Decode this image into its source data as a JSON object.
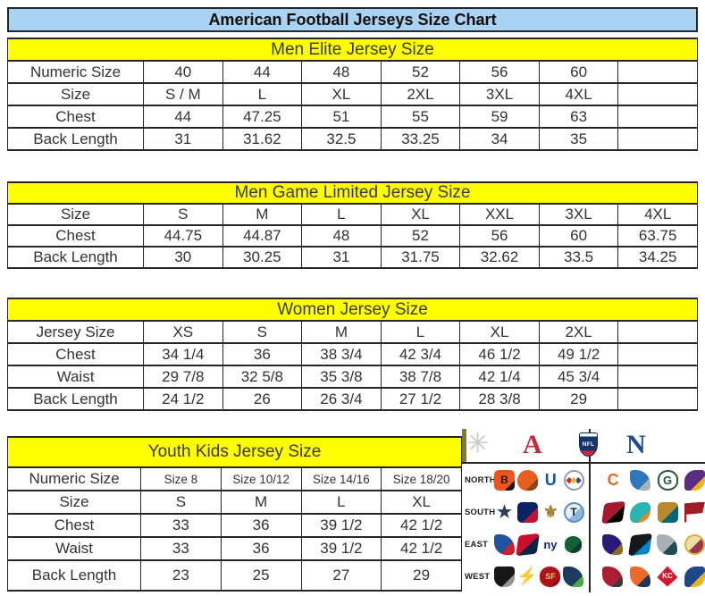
{
  "title": "American Football Jerseys Size Chart",
  "tables": [
    {
      "id": "men-elite",
      "header": "Men Elite Jersey Size",
      "rows": [
        {
          "label": "Numeric Size",
          "values": [
            "40",
            "44",
            "48",
            "52",
            "56",
            "60",
            ""
          ]
        },
        {
          "label": "Size",
          "values": [
            "S / M",
            "L",
            "XL",
            "2XL",
            "3XL",
            "4XL",
            ""
          ]
        },
        {
          "label": "Chest",
          "values": [
            "44",
            "47.25",
            "51",
            "55",
            "59",
            "63",
            ""
          ]
        },
        {
          "label": "Back Length",
          "values": [
            "31",
            "31.62",
            "32.5",
            "33.25",
            "34",
            "35",
            ""
          ]
        }
      ]
    },
    {
      "id": "men-game-limited",
      "header": "Men Game Limited Jersey Size",
      "rows": [
        {
          "label": "Size",
          "values": [
            "S",
            "M",
            "L",
            "XL",
            "XXL",
            "3XL",
            "4XL"
          ]
        },
        {
          "label": "Chest",
          "values": [
            "44.75",
            "44.87",
            "48",
            "52",
            "56",
            "60",
            "63.75"
          ]
        },
        {
          "label": "Back Length",
          "values": [
            "30",
            "30.25",
            "31",
            "31.75",
            "32.62",
            "33.5",
            "34.25"
          ]
        }
      ]
    },
    {
      "id": "women",
      "header": "Women Jersey Size",
      "rows": [
        {
          "label": "Jersey Size",
          "values": [
            "XS",
            "S",
            "M",
            "L",
            "XL",
            "2XL",
            ""
          ]
        },
        {
          "label": "Chest",
          "values": [
            "34 1/4",
            "36",
            "38 3/4",
            "42 3/4",
            "46 1/2",
            "49 1/2",
            ""
          ]
        },
        {
          "label": "Waist",
          "values": [
            "29 7/8",
            "32 5/8",
            "35 3/8",
            "38 7/8",
            "42 1/4",
            "45 3/4",
            ""
          ]
        },
        {
          "label": "Back Length",
          "values": [
            "24 1/2",
            "26",
            "26 3/4",
            "27 1/2",
            "28 3/8",
            "29",
            ""
          ]
        }
      ]
    },
    {
      "id": "youth",
      "header": "Youth Kids Jersey Size",
      "rows": [
        {
          "label": "Numeric Size",
          "values": [
            "Size 8",
            "Size 10/12",
            "Size 14/16",
            "Size 18/20"
          ],
          "small": true
        },
        {
          "label": "Size",
          "values": [
            "S",
            "M",
            "L",
            "XL"
          ]
        },
        {
          "label": "Chest",
          "values": [
            "33",
            "36",
            "39 1/2",
            "42 1/2"
          ]
        },
        {
          "label": "Waist",
          "values": [
            "33",
            "36",
            "39 1/2",
            "42 1/2"
          ]
        },
        {
          "label": "Back Length",
          "values": [
            "23",
            "25",
            "27",
            "29"
          ]
        }
      ]
    }
  ],
  "nfl_panel": {
    "afc_letter": "A",
    "nfc_letter": "N",
    "shield_text": "NFL",
    "starburst_glyph": "✳",
    "divisions": [
      "NORTH",
      "SOUTH",
      "EAST",
      "WEST"
    ],
    "afc_teams": [
      [
        {
          "name": "bengals",
          "c": "#f0531c",
          "a": "#181818",
          "split": 75,
          "g": "B",
          "gc": "#181818",
          "s": "round"
        },
        {
          "name": "browns",
          "c": "#e65f1e",
          "a": "#8a4513",
          "split": 70,
          "g": "",
          "gc": "",
          "s": "helmet"
        },
        {
          "name": "colts",
          "c": "",
          "a": "",
          "g": "U",
          "gc": "#1157a5",
          "s": "glyph-bold"
        },
        {
          "name": "steelers",
          "c": "#ffffff",
          "a": "#ffffff",
          "g": "◆",
          "gc": "#edb51f",
          "gs": 9,
          "s": "circle",
          "b": "#9a9a9a"
        }
      ],
      [
        {
          "name": "cowboys",
          "c": "",
          "a": "",
          "g": "★",
          "gc": "#2d3e5c",
          "s": "glyph"
        },
        {
          "name": "texans",
          "c": "#0b2265",
          "a": "#c41230",
          "split": 62,
          "g": "",
          "gc": "",
          "s": "round"
        },
        {
          "name": "saints",
          "c": "",
          "a": "",
          "g": "⚜",
          "gc": "#a2833c",
          "s": "glyph"
        },
        {
          "name": "titans",
          "c": "#e8eef6",
          "a": "#8fb6dd",
          "split": 55,
          "g": "T",
          "gc": "#0c2340",
          "s": "circle",
          "b": "#5a8fc8"
        }
      ],
      [
        {
          "name": "bills",
          "c": "#2151a1",
          "a": "#cc2031",
          "split": 62,
          "g": "",
          "gc": "",
          "s": "bird"
        },
        {
          "name": "patriots",
          "c": "#c8102e",
          "a": "#0b2545",
          "split": 55,
          "g": "",
          "gc": "",
          "s": "slant"
        },
        {
          "name": "giants",
          "c": "",
          "a": "",
          "g": "ny",
          "gc": "#19277c",
          "s": "glyph-sm"
        },
        {
          "name": "jets",
          "c": "#175e3b",
          "a": "#0f4027",
          "split": 60,
          "g": "",
          "gc": "",
          "s": "oval"
        }
      ],
      [
        {
          "name": "raiders",
          "c": "#161616",
          "a": "#8e9497",
          "split": 68,
          "g": "",
          "gc": "",
          "s": "shield"
        },
        {
          "name": "chargers",
          "c": "",
          "a": "",
          "g": "⚡",
          "gc": "#5ea3d8",
          "s": "glyph"
        },
        {
          "name": "niners",
          "c": "#b01217",
          "a": "#8f0e13",
          "split": 75,
          "g": "SF",
          "gc": "#e8c188",
          "gs": 9,
          "s": "oval"
        },
        {
          "name": "seahawks",
          "c": "#1d3a60",
          "a": "#49a942",
          "split": 70,
          "g": "",
          "gc": "",
          "s": "bird"
        }
      ]
    ],
    "nfc_teams": [
      [
        {
          "name": "bears",
          "c": "",
          "a": "",
          "g": "C",
          "gc": "#e1701f",
          "s": "glyph-bold"
        },
        {
          "name": "lions",
          "c": "#2e77bd",
          "a": "#a8b0b8",
          "split": 68,
          "g": "",
          "gc": "",
          "s": "bird"
        },
        {
          "name": "packers",
          "c": "#ffffff",
          "a": "#ffffff",
          "g": "G",
          "gc": "#2b5340",
          "gs": 13,
          "s": "oval",
          "b": "#2b5340"
        },
        {
          "name": "vikings",
          "c": "#5a2c82",
          "a": "#efb21e",
          "split": 65,
          "g": "",
          "gc": "",
          "s": "horn"
        }
      ],
      [
        {
          "name": "falcons",
          "c": "#a6192e",
          "a": "#000000",
          "split": 60,
          "g": "",
          "gc": "",
          "s": "slant"
        },
        {
          "name": "dolphins",
          "c": "#29b5b0",
          "a": "#f58220",
          "split": 68,
          "g": "",
          "gc": "",
          "s": "fish"
        },
        {
          "name": "jaguars",
          "c": "#bb8a2c",
          "a": "#006778",
          "split": 58,
          "g": "",
          "gc": "",
          "s": "round"
        },
        {
          "name": "buccaneers",
          "c": "#a01d24",
          "a": "#4a4a4a",
          "split": 85,
          "g": "",
          "gc": "",
          "s": "flag"
        }
      ],
      [
        {
          "name": "ravens",
          "c": "#2b1a75",
          "a": "#8a6d1f",
          "split": 70,
          "g": "",
          "gc": "",
          "s": "bird"
        },
        {
          "name": "panthers",
          "c": "#15191e",
          "a": "#0085ca",
          "split": 62,
          "g": "",
          "gc": "",
          "s": "slant"
        },
        {
          "name": "eagles",
          "c": "#a9b1b6",
          "a": "#1d4e54",
          "split": 60,
          "g": "",
          "gc": "",
          "s": "bird"
        },
        {
          "name": "redskins",
          "c": "#f1ddab",
          "a": "#96384f",
          "split": 52,
          "g": "",
          "gc": "",
          "s": "circle",
          "b": "#d8b13c"
        }
      ],
      [
        {
          "name": "cardinals",
          "c": "#ab1e33",
          "a": "#3a3a3a",
          "split": 72,
          "g": "",
          "gc": "",
          "s": "bird"
        },
        {
          "name": "broncos",
          "c": "#eb6b2a",
          "a": "#1c3a5e",
          "split": 65,
          "g": "",
          "gc": "",
          "s": "bird"
        },
        {
          "name": "chiefs",
          "c": "#d6182f",
          "a": "#d6182f",
          "g": "KC",
          "gc": "#ffffff",
          "gs": 8,
          "s": "arrow"
        },
        {
          "name": "rams",
          "c": "#20468c",
          "a": "#e2b71c",
          "split": 62,
          "g": "",
          "gc": "",
          "s": "horn"
        }
      ]
    ]
  },
  "colors": {
    "title_bg": "#a9d2f3",
    "section_bg": "#ffff00",
    "border": "#262626",
    "afc_red": "#c9273a",
    "nfc_blue": "#1d4d90",
    "shield_blue": "#16356e"
  }
}
